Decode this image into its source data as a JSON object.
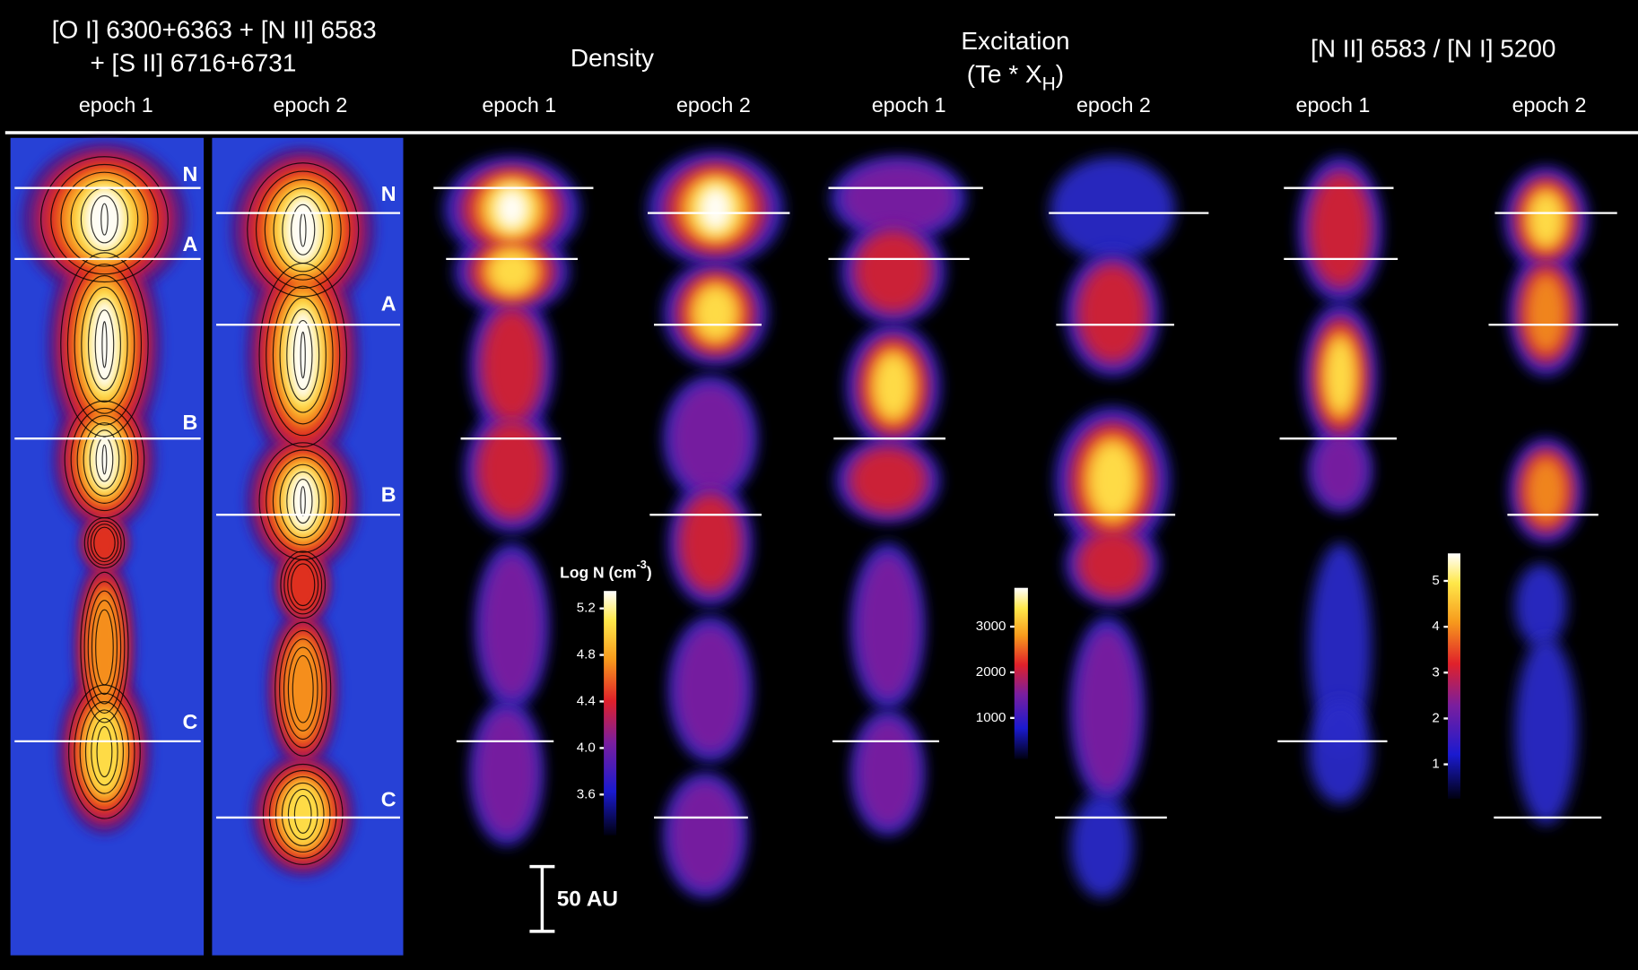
{
  "header": {
    "oi_title": [
      "[O I] 6300+6363 + [N II] 6583",
      "+ [S II] 6716+6731"
    ],
    "density_title": "Density",
    "excitation_title": "Excitation",
    "excitation_subtitle": [
      "(Te * X",
      "H",
      ")"
    ],
    "ratio_title": "[N II] 6583 / [N I] 5200",
    "epochs": [
      "epoch 1",
      "epoch 2",
      "epoch 1",
      "epoch 2",
      "epoch 1",
      "epoch 2",
      "epoch 1",
      "epoch 2"
    ]
  },
  "knot_labels": {
    "epoch_1": [
      "N",
      "A",
      "B",
      "C"
    ],
    "epoch_2": [
      "N",
      "A",
      "B",
      "C"
    ]
  },
  "colorbars": [
    {
      "title": [
        "Log N (cm",
        "-3",
        ")"
      ],
      "lim": [
        3.25,
        5.35
      ],
      "ticks": [
        5.2,
        4.8,
        4.4,
        {
          "value": 4,
          "label": "4.0"
        },
        3.6
      ]
    },
    {
      "lim": [
        100,
        3850
      ],
      "ticks": [
        3000,
        2000,
        1000
      ]
    },
    {
      "lim": [
        0.25,
        5.6
      ],
      "ticks": [
        5,
        4,
        3,
        2,
        1
      ]
    }
  ],
  "scale_bar": {
    "label": "50 AU"
  }
}
